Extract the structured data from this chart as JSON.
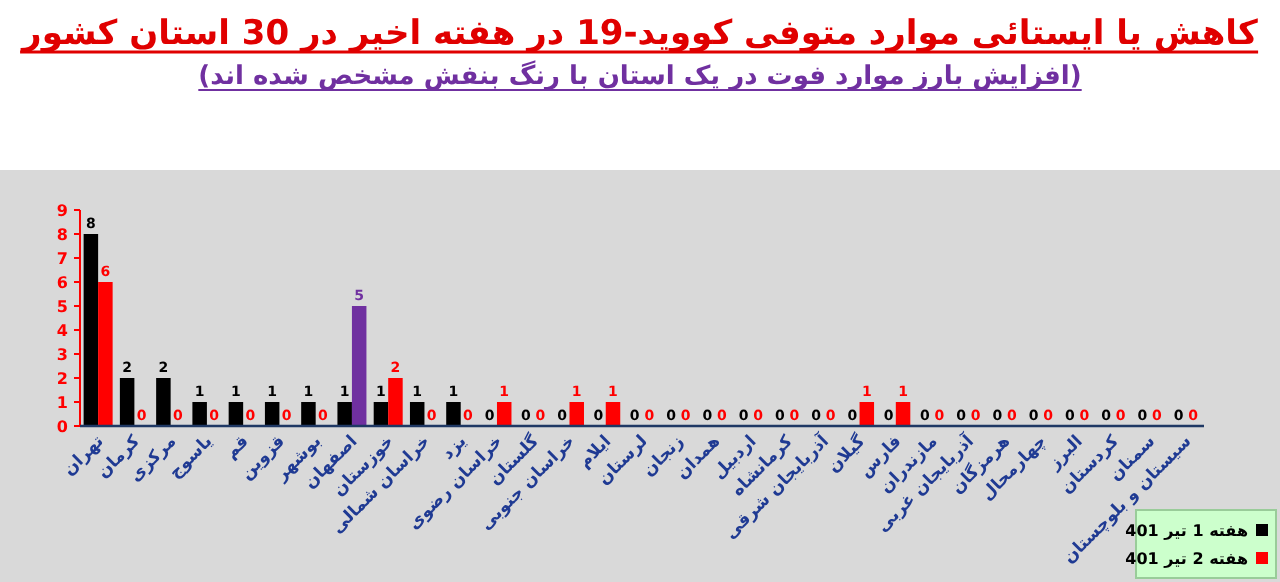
{
  "chart_data": {
    "type": "bar",
    "title": "کاهش یا ایستائی موارد متوفی کووید-19 در هفته اخیر در 30 استان کشور",
    "subtitle": "(افزایش بارز موارد فوت در یک استان با رنگ بنفش مشخص شده اند)",
    "categories": [
      "تهران",
      "کرمان",
      "مرکزی",
      "یاسوج",
      "قم",
      "قزوین",
      "بوشهر",
      "اصفهان",
      "خوزستان",
      "خراسان شمالی",
      "یزد",
      "خراسان رضوی",
      "گلستان",
      "خراسان جنوبی",
      "ایلام",
      "لرستان",
      "زنجان",
      "همدان",
      "اردبیل",
      "کرمانشاه",
      "آذربایجان شرقی",
      "گیلان",
      "فارس",
      "مازندران",
      "آذربایجان غربی",
      "هرمزگان",
      "چهارمحال",
      "البرز",
      "کردستان",
      "سمنان",
      "سیستان و بلوچستان"
    ],
    "series": [
      {
        "name": "هفته 1 تیر 401",
        "color": "#000000",
        "values": [
          8,
          2,
          2,
          1,
          1,
          1,
          1,
          1,
          1,
          1,
          1,
          0,
          0,
          0,
          0,
          0,
          0,
          0,
          0,
          0,
          0,
          0,
          0,
          0,
          0,
          0,
          0,
          0,
          0,
          0,
          0
        ]
      },
      {
        "name": "هفته 2 تیر 401",
        "color": "#ff0000",
        "colors": [
          "#ff0000",
          "#ff0000",
          "#ff0000",
          "#ff0000",
          "#ff0000",
          "#ff0000",
          "#ff0000",
          "#7030a0",
          "#ff0000",
          "#ff0000",
          "#ff0000",
          "#ff0000",
          "#ff0000",
          "#ff0000",
          "#ff0000",
          "#ff0000",
          "#ff0000",
          "#ff0000",
          "#ff0000",
          "#ff0000",
          "#ff0000",
          "#ff0000",
          "#ff0000",
          "#ff0000",
          "#ff0000",
          "#ff0000",
          "#ff0000",
          "#ff0000",
          "#ff0000",
          "#ff0000",
          "#ff0000"
        ],
        "values": [
          6,
          0,
          0,
          0,
          0,
          0,
          0,
          5,
          2,
          0,
          0,
          1,
          0,
          1,
          1,
          0,
          0,
          0,
          0,
          0,
          0,
          1,
          1,
          0,
          0,
          0,
          0,
          0,
          0,
          0,
          0
        ]
      }
    ],
    "ylim": [
      0,
      9
    ],
    "yticks": [
      0,
      1,
      2,
      3,
      4,
      5,
      6,
      7,
      8,
      9
    ],
    "data_labels": true,
    "legend": "bottom right"
  }
}
